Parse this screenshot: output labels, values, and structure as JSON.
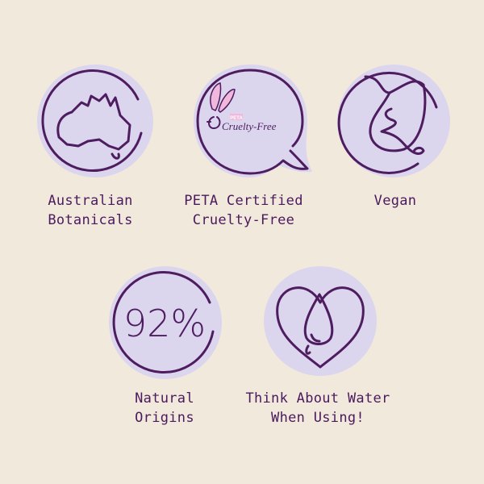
{
  "colors": {
    "background": "#f2e9dd",
    "blob": "#dcd5ee",
    "line": "#4e1d60",
    "peta_pink": "#f0b8dc"
  },
  "badges": [
    {
      "icon": "australia-map-icon",
      "label_line1": "Australian",
      "label_line2": "Botanicals"
    },
    {
      "icon": "peta-bunny-icon",
      "label_line1": "PETA Certified",
      "label_line2": "Cruelty-Free",
      "logo_small": "PETA",
      "logo_text": "Cruelty-Free"
    },
    {
      "icon": "leaf-icon",
      "label_line1": "Vegan"
    },
    {
      "icon": "percent-icon",
      "label_line1": "Natural",
      "label_line2": "Origins",
      "icon_text": "92%"
    },
    {
      "icon": "heart-water-drop-icon",
      "label_line1": "Think About Water",
      "label_line2": "When Using!"
    }
  ]
}
